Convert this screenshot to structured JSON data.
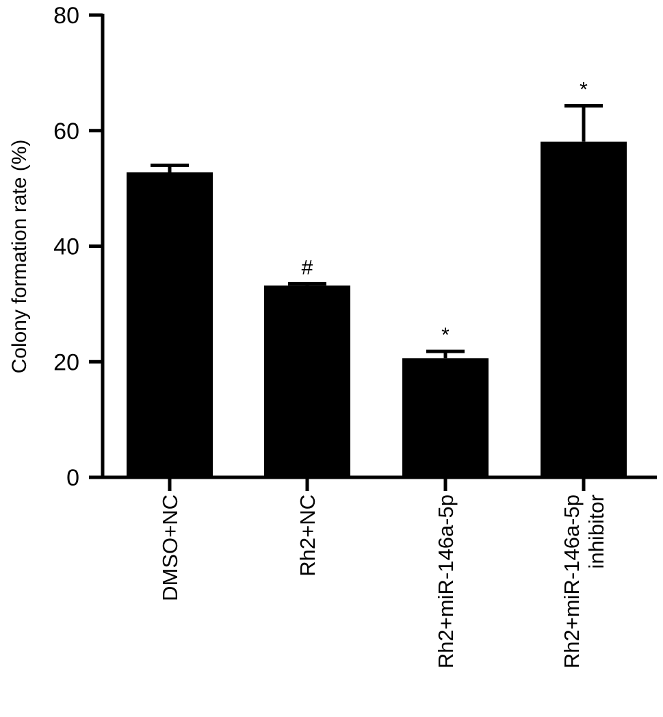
{
  "chart_data": {
    "type": "bar",
    "title": "",
    "xlabel": "",
    "ylabel": "Colony formation rate (%)",
    "ylim": [
      0,
      80
    ],
    "yticks": [
      0,
      20,
      40,
      60,
      80
    ],
    "grid": false,
    "legend": "none",
    "bar_color": "#000000",
    "categories": [
      [
        "DMSO+NC"
      ],
      [
        "Rh2+NC"
      ],
      [
        "Rh2+miR-146a-5p"
      ],
      [
        "Rh2+miR-146a-5p",
        "inhibitor"
      ]
    ],
    "values": [
      52.8,
      33.2,
      20.6,
      58.1
    ],
    "errors": [
      1.2,
      0.3,
      1.2,
      6.2
    ],
    "annotations": [
      "",
      "#",
      "*",
      "*"
    ]
  }
}
